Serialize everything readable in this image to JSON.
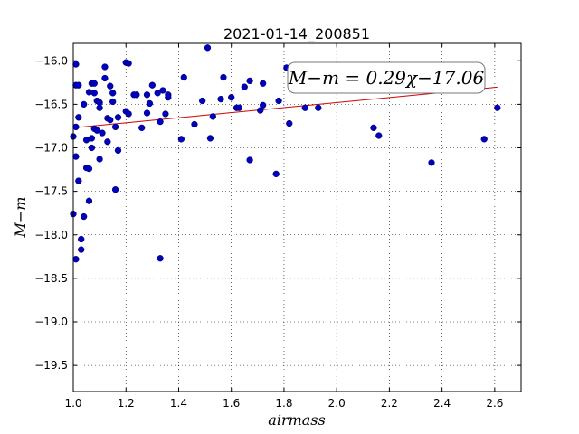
{
  "chart_data": {
    "type": "scatter",
    "title": "2021-01-14_200851",
    "xlabel": "airmass",
    "ylabel": "M−m",
    "xlim": [
      1.0,
      2.7
    ],
    "ylim": [
      -19.8,
      -15.8
    ],
    "y_inverted": true,
    "grid": true,
    "grid_style": "dotted",
    "marker_color": "#0000bf",
    "fit_color": "#cc0000",
    "xticks": [
      1.0,
      1.2,
      1.4,
      1.6,
      1.8,
      2.0,
      2.2,
      2.4,
      2.6
    ],
    "xtick_labels": [
      "1.0",
      "1.2",
      "1.4",
      "1.6",
      "1.8",
      "2.0",
      "2.2",
      "2.4",
      "2.6"
    ],
    "yticks": [
      -16.0,
      -16.5,
      -17.0,
      -17.5,
      -18.0,
      -18.5,
      -19.0,
      -19.5
    ],
    "ytick_labels": [
      "−16.0",
      "−16.5",
      "−17.0",
      "−17.5",
      "−18.0",
      "−18.5",
      "−19.0",
      "−19.5"
    ],
    "fit": {
      "slope": 0.29,
      "intercept": -17.06,
      "x_range": [
        1.0,
        2.61
      ]
    },
    "annotation": "M−m = 0.29χ−17.06",
    "x": [
      1.0,
      1.0,
      1.01,
      1.01,
      1.01,
      1.01,
      1.01,
      1.02,
      1.02,
      1.02,
      1.03,
      1.03,
      1.04,
      1.04,
      1.05,
      1.05,
      1.06,
      1.06,
      1.06,
      1.07,
      1.07,
      1.07,
      1.08,
      1.08,
      1.08,
      1.09,
      1.09,
      1.1,
      1.1,
      1.1,
      1.11,
      1.12,
      1.12,
      1.13,
      1.13,
      1.14,
      1.14,
      1.15,
      1.15,
      1.16,
      1.16,
      1.17,
      1.17,
      1.2,
      1.2,
      1.21,
      1.21,
      1.23,
      1.24,
      1.26,
      1.28,
      1.28,
      1.29,
      1.3,
      1.32,
      1.33,
      1.33,
      1.34,
      1.35,
      1.36,
      1.36,
      1.41,
      1.42,
      1.46,
      1.49,
      1.51,
      1.52,
      1.53,
      1.56,
      1.57,
      1.6,
      1.62,
      1.63,
      1.65,
      1.67,
      1.67,
      1.71,
      1.72,
      1.72,
      1.77,
      1.78,
      1.81,
      1.82,
      1.88,
      1.93,
      2.14,
      2.16,
      2.36,
      2.56,
      2.61
    ],
    "y": [
      -16.87,
      -17.76,
      -16.28,
      -17.1,
      -16.04,
      -16.76,
      -18.28,
      -16.65,
      -16.28,
      -17.38,
      -18.17,
      -18.05,
      -16.5,
      -17.79,
      -16.91,
      -17.23,
      -16.36,
      -17.24,
      -17.61,
      -17.0,
      -16.26,
      -16.89,
      -16.26,
      -16.37,
      -16.78,
      -16.46,
      -16.8,
      -16.48,
      -16.54,
      -17.13,
      -16.83,
      -16.07,
      -16.2,
      -16.93,
      -16.66,
      -16.68,
      -16.29,
      -16.37,
      -16.47,
      -16.76,
      -17.48,
      -16.65,
      -17.03,
      -16.02,
      -16.58,
      -16.03,
      -16.61,
      -16.39,
      -16.39,
      -16.77,
      -16.39,
      -16.6,
      -16.49,
      -16.28,
      -16.37,
      -16.7,
      -18.27,
      -16.34,
      -16.61,
      -16.39,
      -16.42,
      -16.9,
      -16.19,
      -16.73,
      -16.46,
      -15.85,
      -16.89,
      -16.64,
      -16.44,
      -16.19,
      -16.42,
      -16.54,
      -16.54,
      -16.3,
      -16.23,
      -17.14,
      -16.57,
      -16.51,
      -16.26,
      -17.3,
      -16.46,
      -16.08,
      -16.72,
      -16.54,
      -16.54,
      -16.77,
      -16.86,
      -17.17,
      -16.9,
      -16.54
    ]
  }
}
